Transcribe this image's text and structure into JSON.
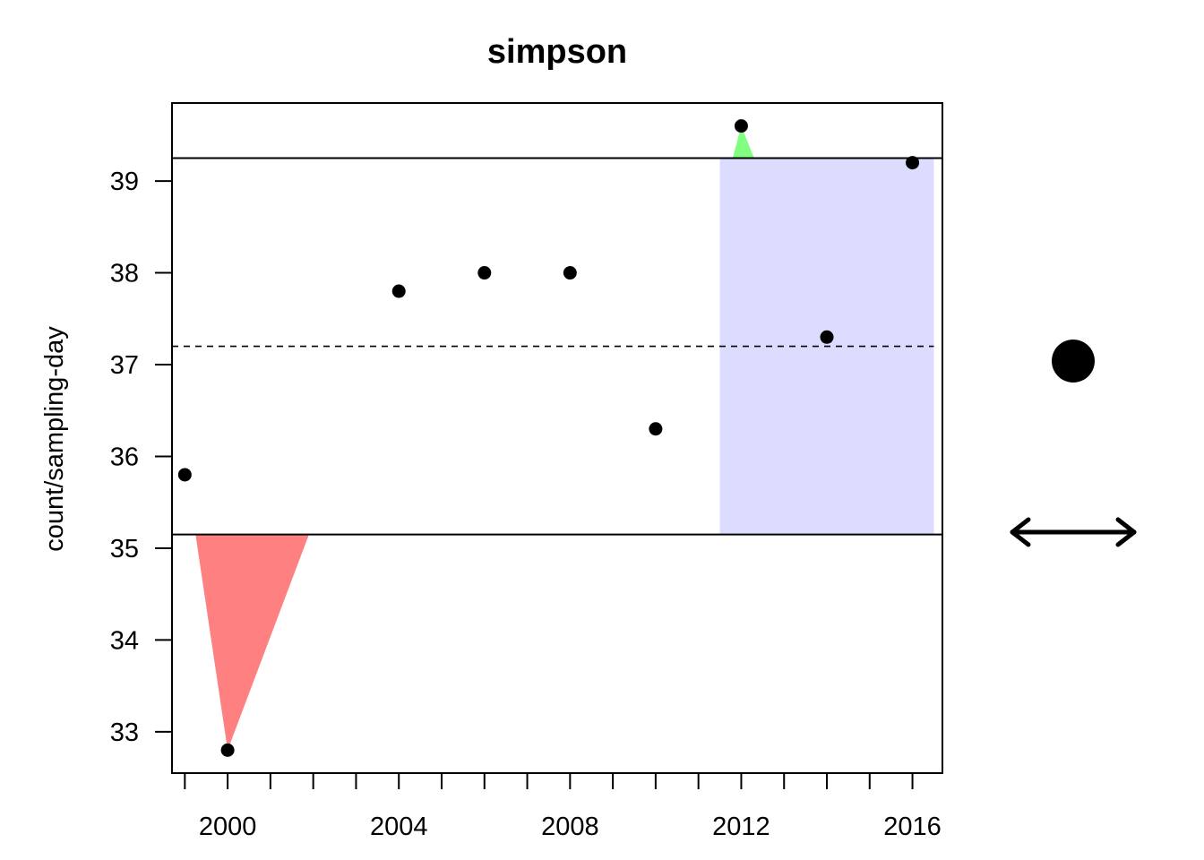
{
  "chart_data": {
    "type": "scatter",
    "title": "simpson",
    "xlabel": "",
    "ylabel": "count/sampling-day",
    "xlim": [
      1998.7,
      2016.7
    ],
    "ylim": [
      32.55,
      39.85
    ],
    "x_ticks": [
      2000,
      2004,
      2008,
      2012,
      2016
    ],
    "x_minor_ticks": [
      1999,
      2000,
      2001,
      2002,
      2003,
      2004,
      2005,
      2006,
      2007,
      2008,
      2009,
      2010,
      2011,
      2012,
      2013,
      2014,
      2015,
      2016
    ],
    "y_ticks": [
      33,
      34,
      35,
      36,
      37,
      38,
      39
    ],
    "points": [
      {
        "x": 1999,
        "y": 35.8
      },
      {
        "x": 2000,
        "y": 32.8
      },
      {
        "x": 2004,
        "y": 37.8
      },
      {
        "x": 2006,
        "y": 38.0
      },
      {
        "x": 2008,
        "y": 38.0
      },
      {
        "x": 2010,
        "y": 36.3
      },
      {
        "x": 2012,
        "y": 39.6
      },
      {
        "x": 2014,
        "y": 37.3
      },
      {
        "x": 2016,
        "y": 39.2
      }
    ],
    "mean_line": 37.2,
    "upper_limit": 39.25,
    "lower_limit": 35.15,
    "shaded_period": {
      "x_start": 2011.5,
      "x_end": 2016.5,
      "color": "#dcdcfe"
    },
    "excursions": [
      {
        "direction": "below",
        "x_left": 1999.25,
        "x_right": 2001.9,
        "x_peak": 2000,
        "y_peak": 32.8,
        "color": "#ff8080"
      },
      {
        "direction": "above",
        "x_left": 2011.8,
        "x_right": 2012.3,
        "x_peak": 2012,
        "y_peak": 39.6,
        "color": "#80ff80"
      }
    ],
    "grid": false,
    "legend": {
      "position": "right",
      "marker_icon": "filled-circle-icon",
      "arrow_icon": "double-headed-arrow-icon"
    }
  }
}
